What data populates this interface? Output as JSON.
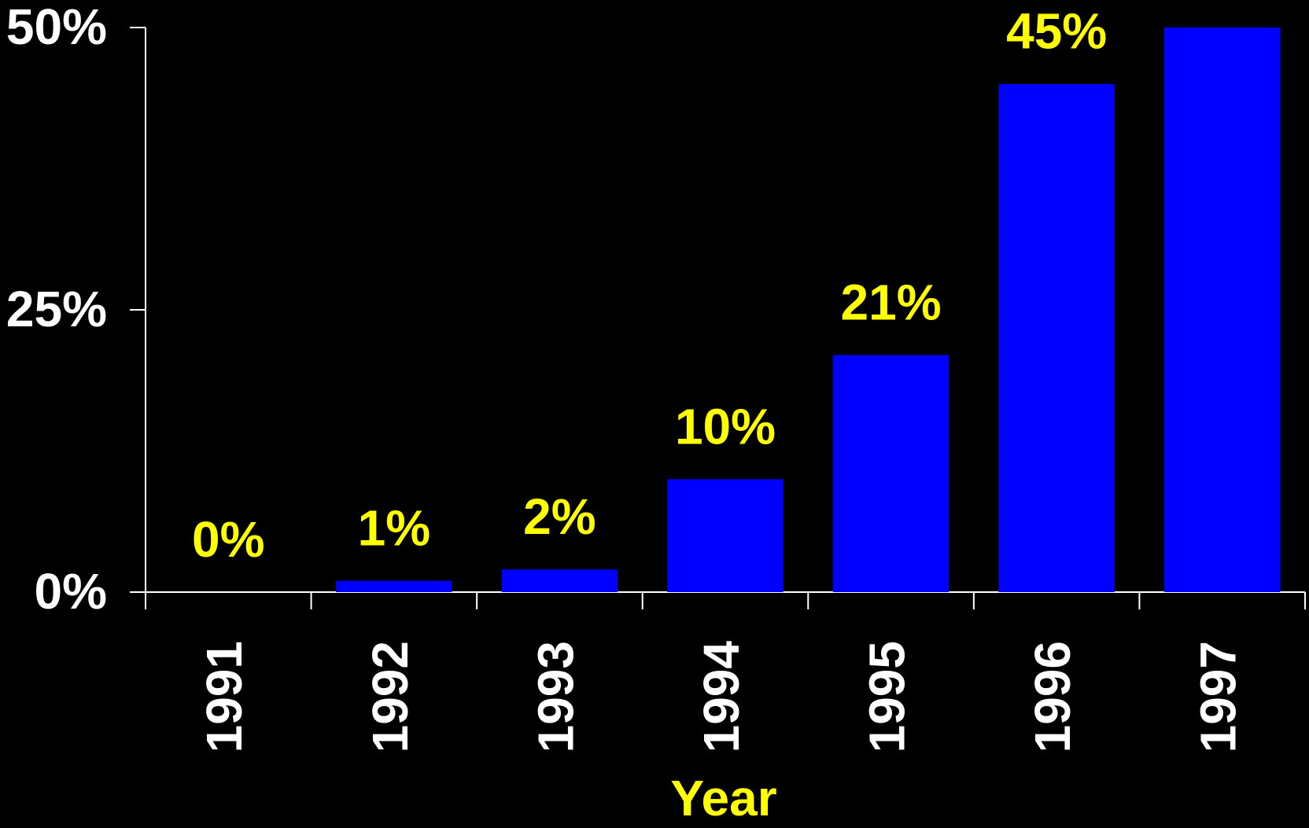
{
  "chart_data": {
    "type": "bar",
    "x_label": "Year",
    "categories": [
      "1991",
      "1992",
      "1993",
      "1994",
      "1995",
      "1996",
      "1997"
    ],
    "values": [
      0,
      1,
      2,
      10,
      21,
      45,
      50
    ],
    "value_labels": [
      "0%",
      "1%",
      "2%",
      "10%",
      "21%",
      "45%",
      null
    ],
    "color": "#0000ff",
    "label_color": "#ffff00",
    "ylim": [
      0,
      50
    ],
    "yticks": [
      {
        "value": 0,
        "label": "0%"
      },
      {
        "value": 25,
        "label": "25%"
      },
      {
        "value": 50,
        "label": "50%"
      }
    ],
    "grid": false
  }
}
